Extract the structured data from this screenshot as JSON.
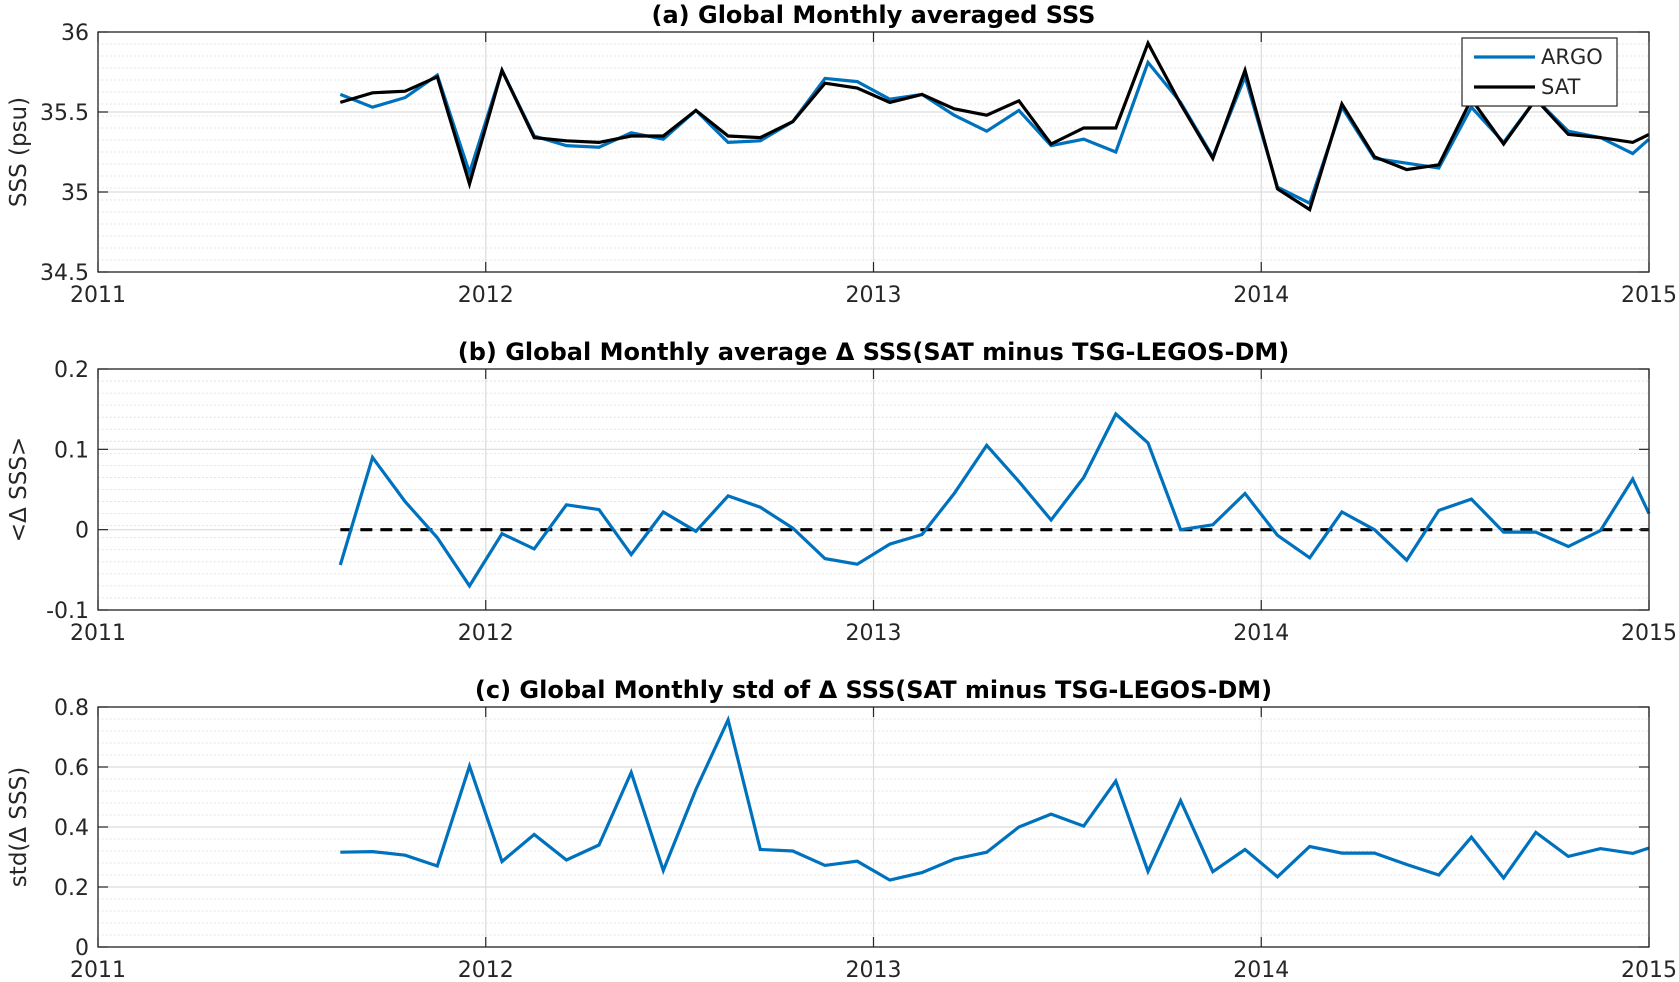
{
  "chart_data": [
    {
      "type": "line",
      "title": "(a) Global Monthly averaged SSS",
      "xlabel": "",
      "ylabel": "SSS (psu)",
      "xlim": [
        2011,
        2015
      ],
      "ylim": [
        34.5,
        36
      ],
      "xticks": [
        "2011",
        "2012",
        "2013",
        "2014",
        "2015"
      ],
      "yticks": [
        "34.5",
        "35",
        "35.5",
        "36"
      ],
      "grid": true,
      "legend": "top-right",
      "x": [
        2011.625,
        2011.708,
        2011.792,
        2011.875,
        2011.958,
        2012.042,
        2012.125,
        2012.208,
        2012.292,
        2012.375,
        2012.458,
        2012.542,
        2012.625,
        2012.708,
        2012.792,
        2012.875,
        2012.958,
        2013.042,
        2013.125,
        2013.208,
        2013.292,
        2013.375,
        2013.458,
        2013.542,
        2013.625,
        2013.708,
        2013.792,
        2013.875,
        2013.958,
        2014.042,
        2014.125,
        2014.208,
        2014.292,
        2014.375,
        2014.458,
        2014.542,
        2014.625,
        2014.708,
        2014.792,
        2014.875,
        2014.958,
        2015.0
      ],
      "series": [
        {
          "name": "ARGO",
          "color": "#0072BD",
          "values": [
            35.61,
            35.53,
            35.59,
            35.73,
            35.12,
            35.76,
            35.35,
            35.29,
            35.28,
            35.37,
            35.33,
            35.51,
            35.31,
            35.32,
            35.44,
            35.71,
            35.69,
            35.58,
            35.61,
            35.48,
            35.38,
            35.51,
            35.29,
            35.33,
            35.25,
            35.81,
            35.56,
            35.22,
            35.72,
            35.03,
            34.93,
            35.53,
            35.21,
            35.18,
            35.15,
            35.53,
            35.31,
            35.58,
            35.38,
            35.34,
            35.24,
            35.33
          ]
        },
        {
          "name": "SAT",
          "color": "#000000",
          "values": [
            35.56,
            35.62,
            35.63,
            35.72,
            35.05,
            35.76,
            35.34,
            35.32,
            35.31,
            35.35,
            35.35,
            35.51,
            35.35,
            35.34,
            35.44,
            35.68,
            35.65,
            35.56,
            35.61,
            35.52,
            35.48,
            35.57,
            35.3,
            35.4,
            35.4,
            35.93,
            35.55,
            35.21,
            35.76,
            35.02,
            34.89,
            35.55,
            35.22,
            35.14,
            35.17,
            35.58,
            35.3,
            35.58,
            35.36,
            35.34,
            35.31,
            35.36
          ]
        }
      ]
    },
    {
      "type": "line",
      "title": "(b) Global Monthly average Δ SSS(SAT minus TSG-LEGOS-DM)",
      "xlabel": "",
      "ylabel": "<Δ SSS>",
      "xlim": [
        2011,
        2015
      ],
      "ylim": [
        -0.1,
        0.2
      ],
      "xticks": [
        "2011",
        "2012",
        "2013",
        "2014",
        "2015"
      ],
      "yticks": [
        "-0.1",
        "0",
        "0.1",
        "0.2"
      ],
      "grid": true,
      "reference_line": {
        "y": 0,
        "style": "dashed",
        "color": "#000000",
        "x_start": 2011.625,
        "x_end": 2015.0
      },
      "x": [
        2011.625,
        2011.708,
        2011.792,
        2011.875,
        2011.958,
        2012.042,
        2012.125,
        2012.208,
        2012.292,
        2012.375,
        2012.458,
        2012.542,
        2012.625,
        2012.708,
        2012.792,
        2012.875,
        2012.958,
        2013.042,
        2013.125,
        2013.208,
        2013.292,
        2013.375,
        2013.458,
        2013.542,
        2013.625,
        2013.708,
        2013.792,
        2013.875,
        2013.958,
        2014.042,
        2014.125,
        2014.208,
        2014.292,
        2014.375,
        2014.458,
        2014.542,
        2014.625,
        2014.708,
        2014.792,
        2014.875,
        2014.958,
        2015.0
      ],
      "series": [
        {
          "color": "#0072BD",
          "values": [
            -0.044,
            0.09,
            0.035,
            -0.01,
            -0.07,
            -0.005,
            -0.024,
            0.031,
            0.025,
            -0.031,
            0.022,
            -0.002,
            0.042,
            0.028,
            0.002,
            -0.036,
            -0.043,
            -0.018,
            -0.006,
            0.045,
            0.105,
            0.06,
            0.012,
            0.065,
            0.144,
            0.108,
            0.0,
            0.006,
            0.045,
            -0.007,
            -0.035,
            0.022,
            0.0,
            -0.038,
            0.024,
            0.038,
            -0.003,
            -0.003,
            -0.021,
            -0.001,
            0.063,
            0.02
          ]
        }
      ]
    },
    {
      "type": "line",
      "title": "(c) Global Monthly std of Δ SSS(SAT minus TSG-LEGOS-DM)",
      "xlabel": "",
      "ylabel": "std(Δ SSS)",
      "xlim": [
        2011,
        2015
      ],
      "ylim": [
        0,
        0.8
      ],
      "xticks": [
        "2011",
        "2012",
        "2013",
        "2014",
        "2015"
      ],
      "yticks": [
        "0",
        "0.2",
        "0.4",
        "0.6",
        "0.8"
      ],
      "grid": true,
      "x": [
        2011.625,
        2011.708,
        2011.792,
        2011.875,
        2011.958,
        2012.042,
        2012.125,
        2012.208,
        2012.292,
        2012.375,
        2012.458,
        2012.542,
        2012.625,
        2012.708,
        2012.792,
        2012.875,
        2012.958,
        2013.042,
        2013.125,
        2013.208,
        2013.292,
        2013.375,
        2013.458,
        2013.542,
        2013.625,
        2013.708,
        2013.792,
        2013.875,
        2013.958,
        2014.042,
        2014.125,
        2014.208,
        2014.292,
        2014.375,
        2014.458,
        2014.542,
        2014.625,
        2014.708,
        2014.792,
        2014.875,
        2014.958,
        2015.0
      ],
      "series": [
        {
          "color": "#0072BD",
          "values": [
            0.316,
            0.318,
            0.306,
            0.27,
            0.603,
            0.285,
            0.375,
            0.29,
            0.34,
            0.582,
            0.255,
            0.525,
            0.757,
            0.325,
            0.32,
            0.272,
            0.286,
            0.223,
            0.248,
            0.293,
            0.316,
            0.4,
            0.443,
            0.403,
            0.553,
            0.252,
            0.488,
            0.251,
            0.325,
            0.234,
            0.335,
            0.313,
            0.313,
            0.275,
            0.24,
            0.366,
            0.23,
            0.382,
            0.302,
            0.328,
            0.312,
            0.33
          ]
        }
      ]
    }
  ]
}
